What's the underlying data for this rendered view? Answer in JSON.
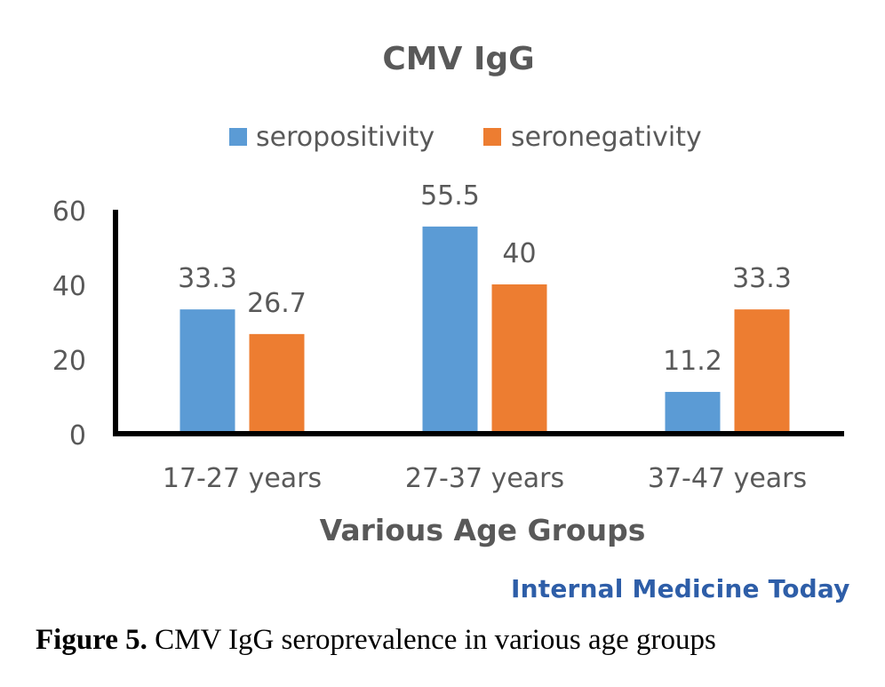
{
  "chart_data": {
    "type": "bar",
    "title": "CMV IgG",
    "xlabel": "Various Age Groups",
    "ylabel": "",
    "categories": [
      "17-27 years",
      "27-37 years",
      "37-47 years"
    ],
    "series": [
      {
        "name": "seropositivity",
        "color": "#5b9bd5",
        "values": [
          33.3,
          55.5,
          11.2
        ],
        "labels": [
          "33.3",
          "55.5",
          "11.2"
        ]
      },
      {
        "name": "seronegativity",
        "color": "#ed7d31",
        "values": [
          26.7,
          40,
          33.3
        ],
        "labels": [
          "26.7",
          "40",
          "33.3"
        ]
      }
    ],
    "ylim": [
      0,
      60
    ],
    "yticks": [
      0,
      20,
      40,
      60
    ],
    "grid": false,
    "legend": "top-center"
  },
  "watermark": "Internal Medicine Today",
  "caption": {
    "label": "Figure 5.",
    "text": " CMV IgG seroprevalence in various age groups"
  },
  "colors": {
    "axis": "#000000",
    "text": "#595959",
    "watermark": "#2e5ea8"
  }
}
